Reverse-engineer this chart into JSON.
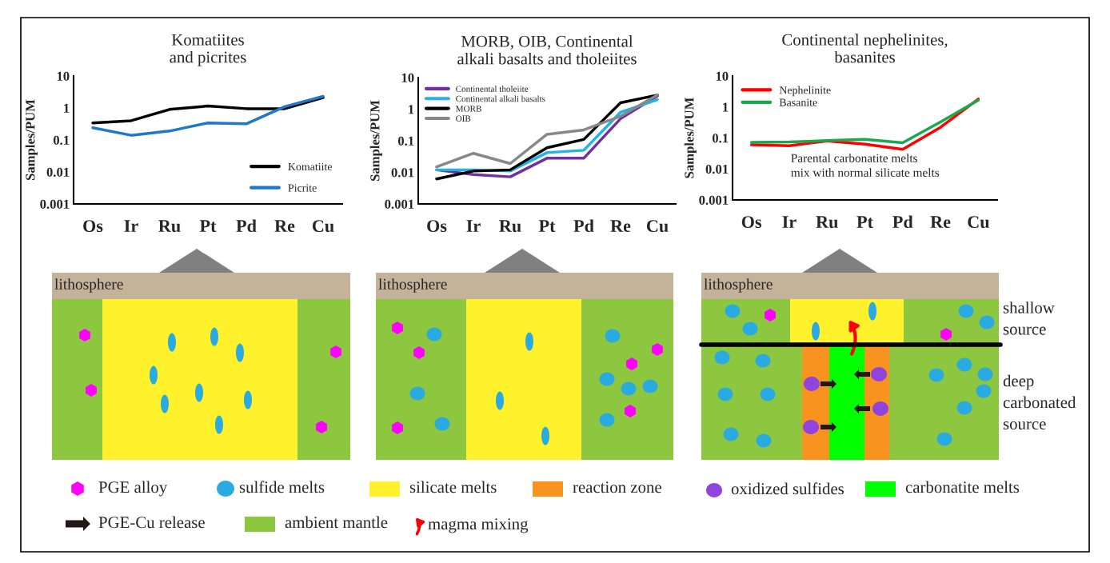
{
  "chart_data": [
    {
      "type": "line",
      "title": "Komatiites\nand picrites",
      "ylabel": "Samples/PUM",
      "categories": [
        "Os",
        "Ir",
        "Ru",
        "Pt",
        "Pd",
        "Re",
        "Cu"
      ],
      "log": true,
      "ylim": [
        0.001,
        10
      ],
      "yticks": [
        0.001,
        0.01,
        0.1,
        1,
        10
      ],
      "legend": "bottom right",
      "marker": "none",
      "series": [
        {
          "name": "Komatiite",
          "color": "#000000",
          "values": [
            0.34,
            0.4,
            0.9,
            1.15,
            0.95,
            0.95,
            2.1
          ]
        },
        {
          "name": "Picrite",
          "color": "#1f78c8",
          "values": [
            0.24,
            0.14,
            0.19,
            0.34,
            0.32,
            1.1,
            2.3
          ]
        }
      ]
    },
    {
      "type": "line",
      "title": "MORB, OIB, Continental\nalkali basalts and tholeiites",
      "ylabel": "Samples/PUM",
      "categories": [
        "Os",
        "Ir",
        "Ru",
        "Pt",
        "Pd",
        "Re",
        "Cu"
      ],
      "log": true,
      "ylim": [
        0.001,
        10
      ],
      "yticks": [
        0.001,
        0.01,
        0.1,
        1,
        10
      ],
      "legend": "top left",
      "marker": "none",
      "series": [
        {
          "name": "Continental tholeiite",
          "color": "#7030a0",
          "values": [
            0.012,
            0.0085,
            0.0072,
            0.028,
            0.028,
            0.5,
            2.6
          ]
        },
        {
          "name": "Continental alkali basalts",
          "color": "#1fb4e8",
          "values": [
            0.012,
            0.012,
            0.011,
            0.042,
            0.05,
            0.8,
            2.0
          ]
        },
        {
          "name": "MORB",
          "color": "#000000",
          "values": [
            0.0062,
            0.011,
            0.012,
            0.06,
            0.11,
            1.6,
            2.8
          ]
        },
        {
          "name": "OIB",
          "color": "#888888",
          "values": [
            0.015,
            0.04,
            0.019,
            0.16,
            0.22,
            0.6,
            2.8
          ]
        }
      ]
    },
    {
      "type": "line",
      "title": "Continental nephelinites,\nbasanites",
      "ylabel": "Samples/PUM",
      "categories": [
        "Os",
        "Ir",
        "Ru",
        "Pt",
        "Pd",
        "Re",
        "Cu"
      ],
      "log": true,
      "ylim": [
        0.001,
        10
      ],
      "yticks": [
        0.001,
        0.01,
        0.1,
        1,
        10
      ],
      "legend": "top left",
      "marker": "none",
      "annotations": [
        "Parental carbonatite melts\nmix with normal silicate melts"
      ],
      "series": [
        {
          "name": "Nephelinite",
          "color": "#ff0000",
          "values": [
            0.06,
            0.056,
            0.08,
            0.063,
            0.043,
            0.22,
            1.8
          ]
        },
        {
          "name": "Basanite",
          "color": "#1aa84f",
          "values": [
            0.072,
            0.074,
            0.082,
            0.09,
            0.07,
            0.33,
            1.65
          ]
        }
      ]
    },
    {
      "type": "other",
      "annotations": [
        "lithosphere",
        "lithosphere",
        "lithosphere",
        "shallow\nsource",
        "deep\ncarbonated\nsource",
        "PGE alloy",
        "sulfide melts",
        "silicate melts",
        "reaction zone",
        "oxidized sulfides",
        "carbonatite melts",
        "PGE-Cu release",
        "ambient mantle",
        "magma mixing"
      ]
    }
  ]
}
